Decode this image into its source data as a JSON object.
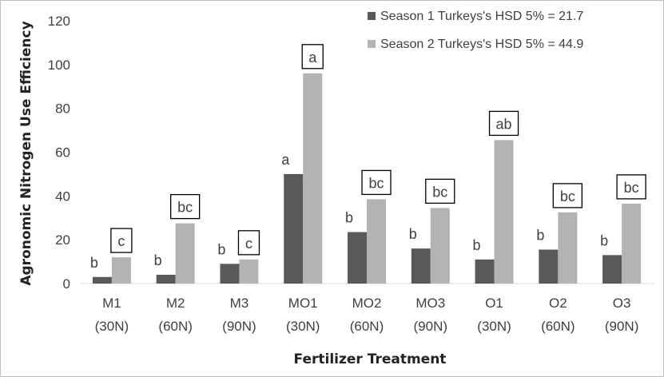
{
  "chart_data": {
    "type": "bar",
    "title": "",
    "xlabel": "Fertilizer Treatment",
    "ylabel": "Agronomic Nitrogen Use Efficiency",
    "ylim": [
      0,
      120
    ],
    "yticks": [
      0,
      20,
      40,
      60,
      80,
      100,
      120
    ],
    "grid": false,
    "legend_position": "top-right",
    "categories": [
      {
        "line1": "M1",
        "line2": "(30N)"
      },
      {
        "line1": "M2",
        "line2": "(60N)"
      },
      {
        "line1": "M3",
        "line2": "(90N)"
      },
      {
        "line1": "MO1",
        "line2": "(30N)"
      },
      {
        "line1": "MO2",
        "line2": "(60N)"
      },
      {
        "line1": "MO3",
        "line2": "(90N)"
      },
      {
        "line1": "O1",
        "line2": "(30N)"
      },
      {
        "line1": "O2",
        "line2": "(60N)"
      },
      {
        "line1": "O3",
        "line2": "(90N)"
      }
    ],
    "series": [
      {
        "name": "Season 1 Turkeys's HSD 5% = 21.7",
        "color": "#595959",
        "values": [
          3,
          4,
          9,
          50,
          23.5,
          16,
          11,
          15.5,
          13
        ],
        "letters": [
          "b",
          "b",
          "b",
          "a",
          "b",
          "b",
          "b",
          "b",
          "b"
        ],
        "boxed": false
      },
      {
        "name": "Season 2 Turkeys's HSD 5% = 44.9",
        "color": "#b3b3b3",
        "values": [
          12,
          27.5,
          11,
          96,
          38.5,
          34.5,
          65.5,
          32.5,
          36.5
        ],
        "letters": [
          "c",
          "bc",
          "c",
          "a",
          "bc",
          "bc",
          "ab",
          "bc",
          "bc"
        ],
        "boxed": true
      }
    ]
  }
}
